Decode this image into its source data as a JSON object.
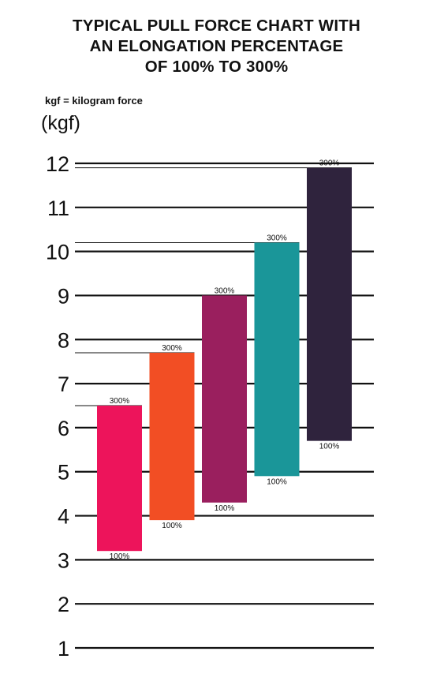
{
  "title_lines": [
    "TYPICAL PULL FORCE CHART WITH",
    "AN ELONGATION PERCENTAGE",
    "OF 100% TO 300%"
  ],
  "note": "kgf = kilogram force",
  "unit": "(kgf)",
  "chart_data": {
    "type": "bar",
    "title": "TYPICAL PULL FORCE CHART WITH AN ELONGATION PERCENTAGE OF 100% TO 300%",
    "ylabel": "(kgf)",
    "ylim": [
      1,
      12
    ],
    "yticks": [
      1,
      2,
      3,
      4,
      5,
      6,
      7,
      8,
      9,
      10,
      11,
      12
    ],
    "grid": true,
    "bars": [
      {
        "low": 3.2,
        "high": 6.5,
        "low_label": "100%",
        "high_label": "300%",
        "color": "#ED145B"
      },
      {
        "low": 3.9,
        "high": 7.7,
        "low_label": "100%",
        "high_label": "300%",
        "color": "#F24E24"
      },
      {
        "low": 4.3,
        "high": 9.0,
        "low_label": "100%",
        "high_label": "300%",
        "color": "#9A1F5E"
      },
      {
        "low": 4.9,
        "high": 10.2,
        "low_label": "100%",
        "high_label": "300%",
        "color": "#1A9699"
      },
      {
        "low": 5.7,
        "high": 11.9,
        "low_label": "100%",
        "high_label": "300%",
        "color": "#2F233D"
      }
    ]
  }
}
